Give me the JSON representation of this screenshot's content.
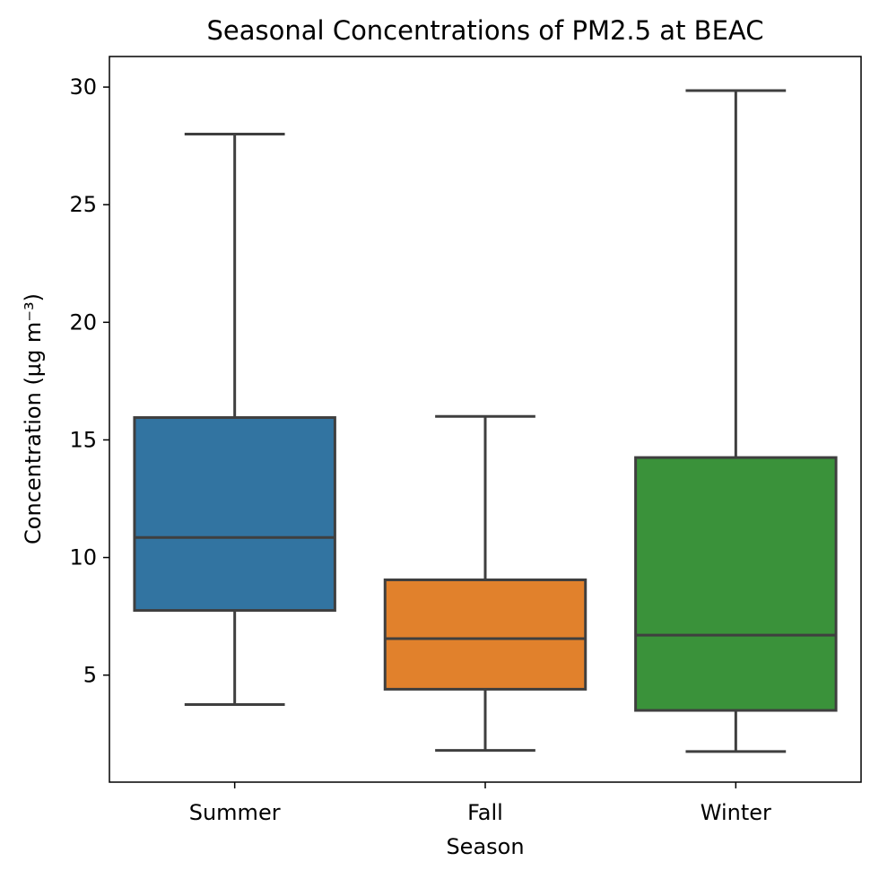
{
  "chart_data": {
    "type": "box",
    "title": "Seasonal Concentrations of PM2.5 at BEAC",
    "xlabel": "Season",
    "ylabel": "Concentration (µg m⁻³)",
    "categories": [
      "Summer",
      "Fall",
      "Winter"
    ],
    "boxes": [
      {
        "category": "Summer",
        "whisker_low": 3.75,
        "q1": 7.75,
        "median": 10.85,
        "q3": 15.95,
        "whisker_high": 28.0,
        "color": "#3274a1"
      },
      {
        "category": "Fall",
        "whisker_low": 1.8,
        "q1": 4.4,
        "median": 6.55,
        "q3": 9.05,
        "whisker_high": 16.0,
        "color": "#e1812c"
      },
      {
        "category": "Winter",
        "whisker_low": 1.75,
        "q1": 3.5,
        "median": 6.7,
        "q3": 14.25,
        "whisker_high": 29.85,
        "color": "#3a923a"
      }
    ],
    "y_ticks": [
      5,
      10,
      15,
      20,
      25,
      30
    ],
    "ylim": [
      0.45,
      31.3
    ],
    "grid": false,
    "line_color": "#3f3f3f"
  }
}
